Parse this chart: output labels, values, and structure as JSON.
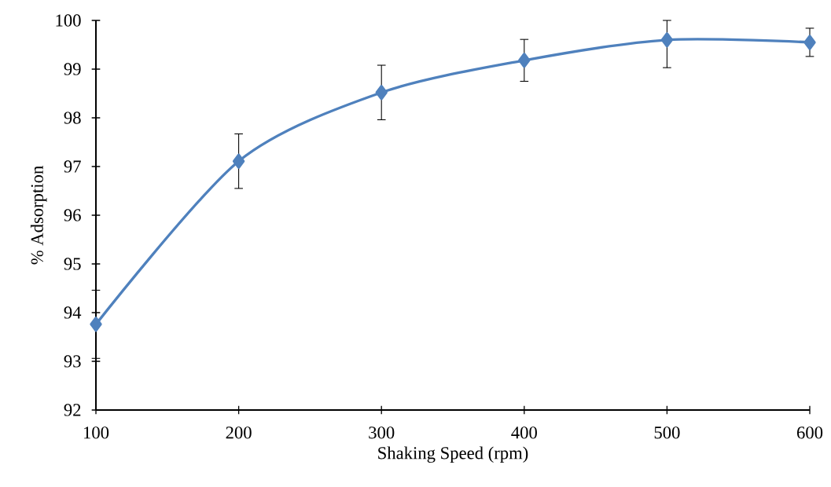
{
  "chart_data": {
    "type": "line",
    "xlabel": "Shaking Speed (rpm)",
    "ylabel": "% Adsorption",
    "x": [
      100,
      200,
      300,
      400,
      500,
      600
    ],
    "series": [
      {
        "color": "#4f81bd",
        "values": [
          93.76,
          97.11,
          98.52,
          99.18,
          99.6,
          99.55
        ],
        "errors": [
          0.7,
          0.56,
          0.56,
          0.43,
          [
            99.03,
            100
          ],
          0.29
        ]
      }
    ],
    "xlim": [
      100,
      600
    ],
    "xticks": [
      100,
      200,
      300,
      400,
      500,
      600
    ],
    "ylim": [
      92,
      100
    ],
    "yticks": [
      92,
      93,
      94,
      95,
      96,
      97,
      98,
      99,
      100
    ],
    "grid": false,
    "marker": "diamond",
    "line_style": "solid"
  }
}
